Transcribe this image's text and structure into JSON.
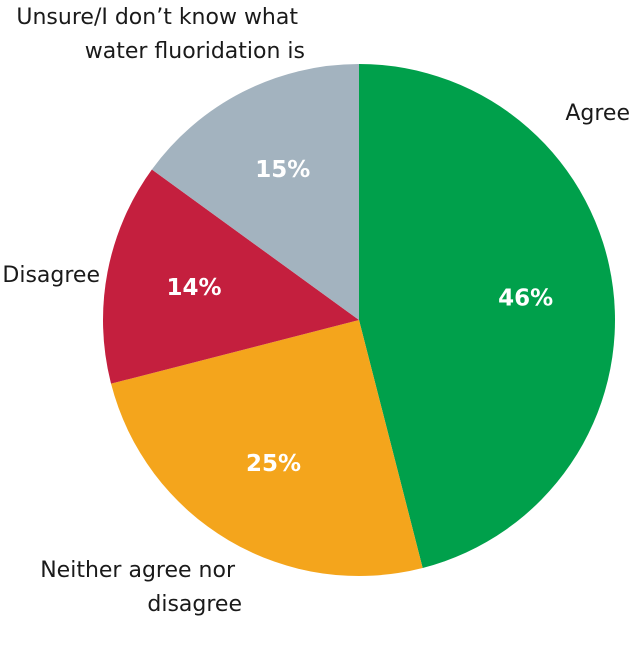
{
  "chart_data": {
    "type": "pie",
    "start_angle": "12 o'clock",
    "direction": "clockwise",
    "slices": [
      {
        "label": "Agree",
        "value": 46,
        "value_label": "46%",
        "color": "#00a04b"
      },
      {
        "label": "Neither agree nor disagree",
        "value": 25,
        "value_label": "25%",
        "color": "#f4a51c"
      },
      {
        "label": "Disagree",
        "value": 14,
        "value_label": "14%",
        "color": "#c41f3e"
      },
      {
        "label": "Unsure/I don’t know what water fluoridation is",
        "value": 15,
        "value_label": "15%",
        "color": "#a3b3bf"
      }
    ]
  }
}
